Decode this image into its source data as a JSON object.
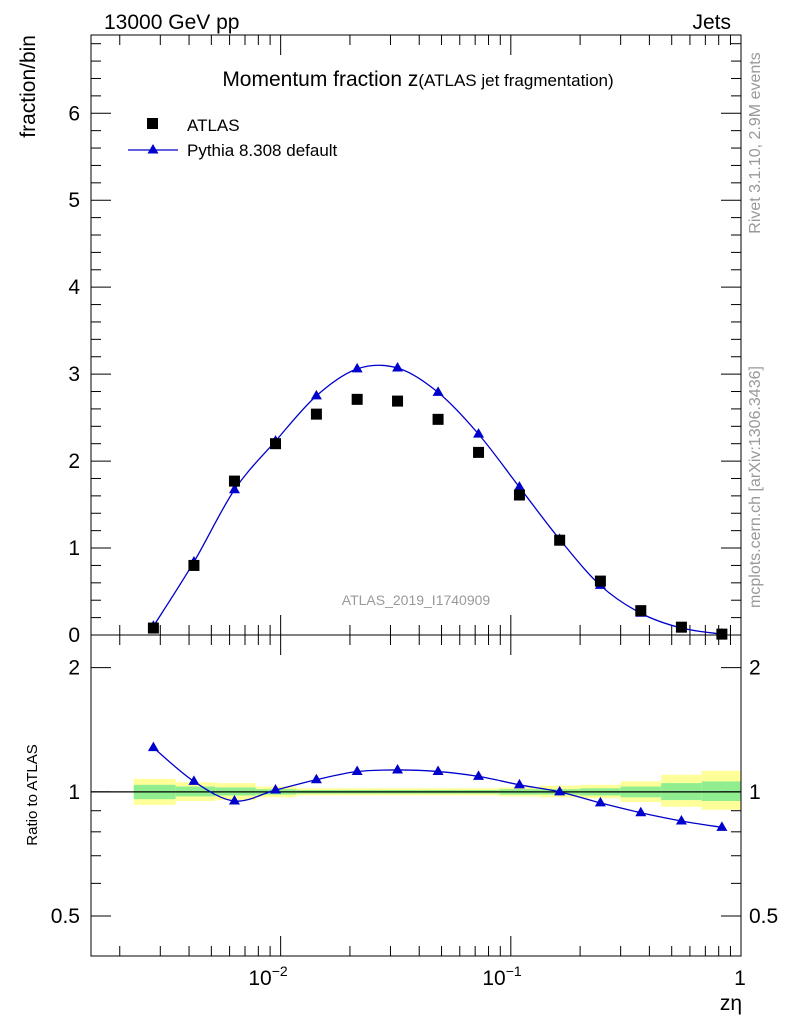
{
  "header": {
    "left_label": "13000 GeV pp",
    "right_label": "Jets"
  },
  "side_labels": {
    "rivet": "Rivet 3.1.10,  2.9M events",
    "source": "mcplots.cern.ch [arXiv:1306.3436]"
  },
  "colors": {
    "mc_line": "#0000cc",
    "data_marker": "#000000",
    "band_inner": "#90ee90",
    "band_outer": "#ffff99",
    "watermark": "#999999"
  },
  "chart_data": [
    {
      "type": "scatter",
      "title_main": "Momentum fraction z",
      "title_sub": "(ATLAS jet fragmentation)",
      "ylabel": "fraction/bin",
      "watermark": "ATLAS_2019_I1740909",
      "x_scale": "log",
      "xlim": [
        0.0015,
        1.0
      ],
      "ylim": [
        0,
        6.9
      ],
      "y_ticks": [
        "0",
        "1",
        "2",
        "3",
        "4",
        "5",
        "6"
      ],
      "legend": {
        "position": "top-left",
        "entries": [
          "ATLAS",
          "Pythia 8.308 default"
        ]
      },
      "series": [
        {
          "name": "ATLAS",
          "style": "square-markers",
          "x": [
            0.0028,
            0.0042,
            0.0063,
            0.0095,
            0.0143,
            0.0215,
            0.0322,
            0.0483,
            0.0724,
            0.109,
            0.163,
            0.245,
            0.367,
            0.551,
            0.826
          ],
          "y": [
            0.08,
            0.8,
            1.77,
            2.2,
            2.54,
            2.71,
            2.69,
            2.48,
            2.1,
            1.61,
            1.09,
            0.62,
            0.28,
            0.09,
            0.01
          ]
        },
        {
          "name": "Pythia 8.308 default",
          "style": "line-triangles",
          "x": [
            0.0028,
            0.0042,
            0.0063,
            0.0095,
            0.0143,
            0.0215,
            0.0322,
            0.0483,
            0.0724,
            0.109,
            0.163,
            0.245,
            0.367,
            0.551,
            0.826
          ],
          "y": [
            0.1,
            0.84,
            1.67,
            2.23,
            2.75,
            3.06,
            3.07,
            2.79,
            2.31,
            1.7,
            1.1,
            0.57,
            0.25,
            0.08,
            0.01
          ]
        }
      ]
    },
    {
      "type": "scatter",
      "ylabel": "Ratio to ATLAS",
      "xlabel": "zη",
      "x_scale": "log",
      "y_scale": "log",
      "xlim": [
        0.0015,
        1.0
      ],
      "ylim": [
        0.4,
        2.4
      ],
      "y_ticks": [
        "0.5",
        "1",
        "2"
      ],
      "x_tick_labels": [
        "10",
        "−2",
        "10",
        "−1",
        "1"
      ],
      "bin_edges": [
        0.0023,
        0.0035,
        0.0052,
        0.0078,
        0.0117,
        0.0176,
        0.0264,
        0.0396,
        0.0594,
        0.089,
        0.1335,
        0.2,
        0.3,
        0.45,
        0.675,
        1.0
      ],
      "band_inner": [
        [
          0.96,
          1.04
        ],
        [
          0.975,
          1.03
        ],
        [
          0.98,
          1.025
        ],
        [
          0.985,
          1.015
        ],
        [
          0.99,
          1.01
        ],
        [
          0.99,
          1.01
        ],
        [
          0.99,
          1.01
        ],
        [
          0.99,
          1.01
        ],
        [
          0.99,
          1.01
        ],
        [
          0.985,
          1.015
        ],
        [
          0.985,
          1.015
        ],
        [
          0.98,
          1.02
        ],
        [
          0.97,
          1.03
        ],
        [
          0.955,
          1.05
        ],
        [
          0.95,
          1.06
        ]
      ],
      "band_outer": [
        [
          0.93,
          1.075
        ],
        [
          0.95,
          1.055
        ],
        [
          0.955,
          1.05
        ],
        [
          0.97,
          1.03
        ],
        [
          0.98,
          1.02
        ],
        [
          0.98,
          1.02
        ],
        [
          0.98,
          1.02
        ],
        [
          0.98,
          1.02
        ],
        [
          0.98,
          1.02
        ],
        [
          0.975,
          1.025
        ],
        [
          0.97,
          1.035
        ],
        [
          0.965,
          1.04
        ],
        [
          0.945,
          1.06
        ],
        [
          0.92,
          1.1
        ],
        [
          0.905,
          1.125
        ]
      ],
      "series": [
        {
          "name": "Pythia 8.308 default",
          "style": "line-triangles",
          "x": [
            0.0028,
            0.0042,
            0.0063,
            0.0095,
            0.0143,
            0.0215,
            0.0322,
            0.0483,
            0.0724,
            0.109,
            0.163,
            0.245,
            0.367,
            0.551,
            0.826
          ],
          "y": [
            1.28,
            1.06,
            0.95,
            1.01,
            1.07,
            1.12,
            1.13,
            1.12,
            1.09,
            1.04,
            1.0,
            0.94,
            0.89,
            0.85,
            0.82
          ]
        }
      ]
    }
  ]
}
